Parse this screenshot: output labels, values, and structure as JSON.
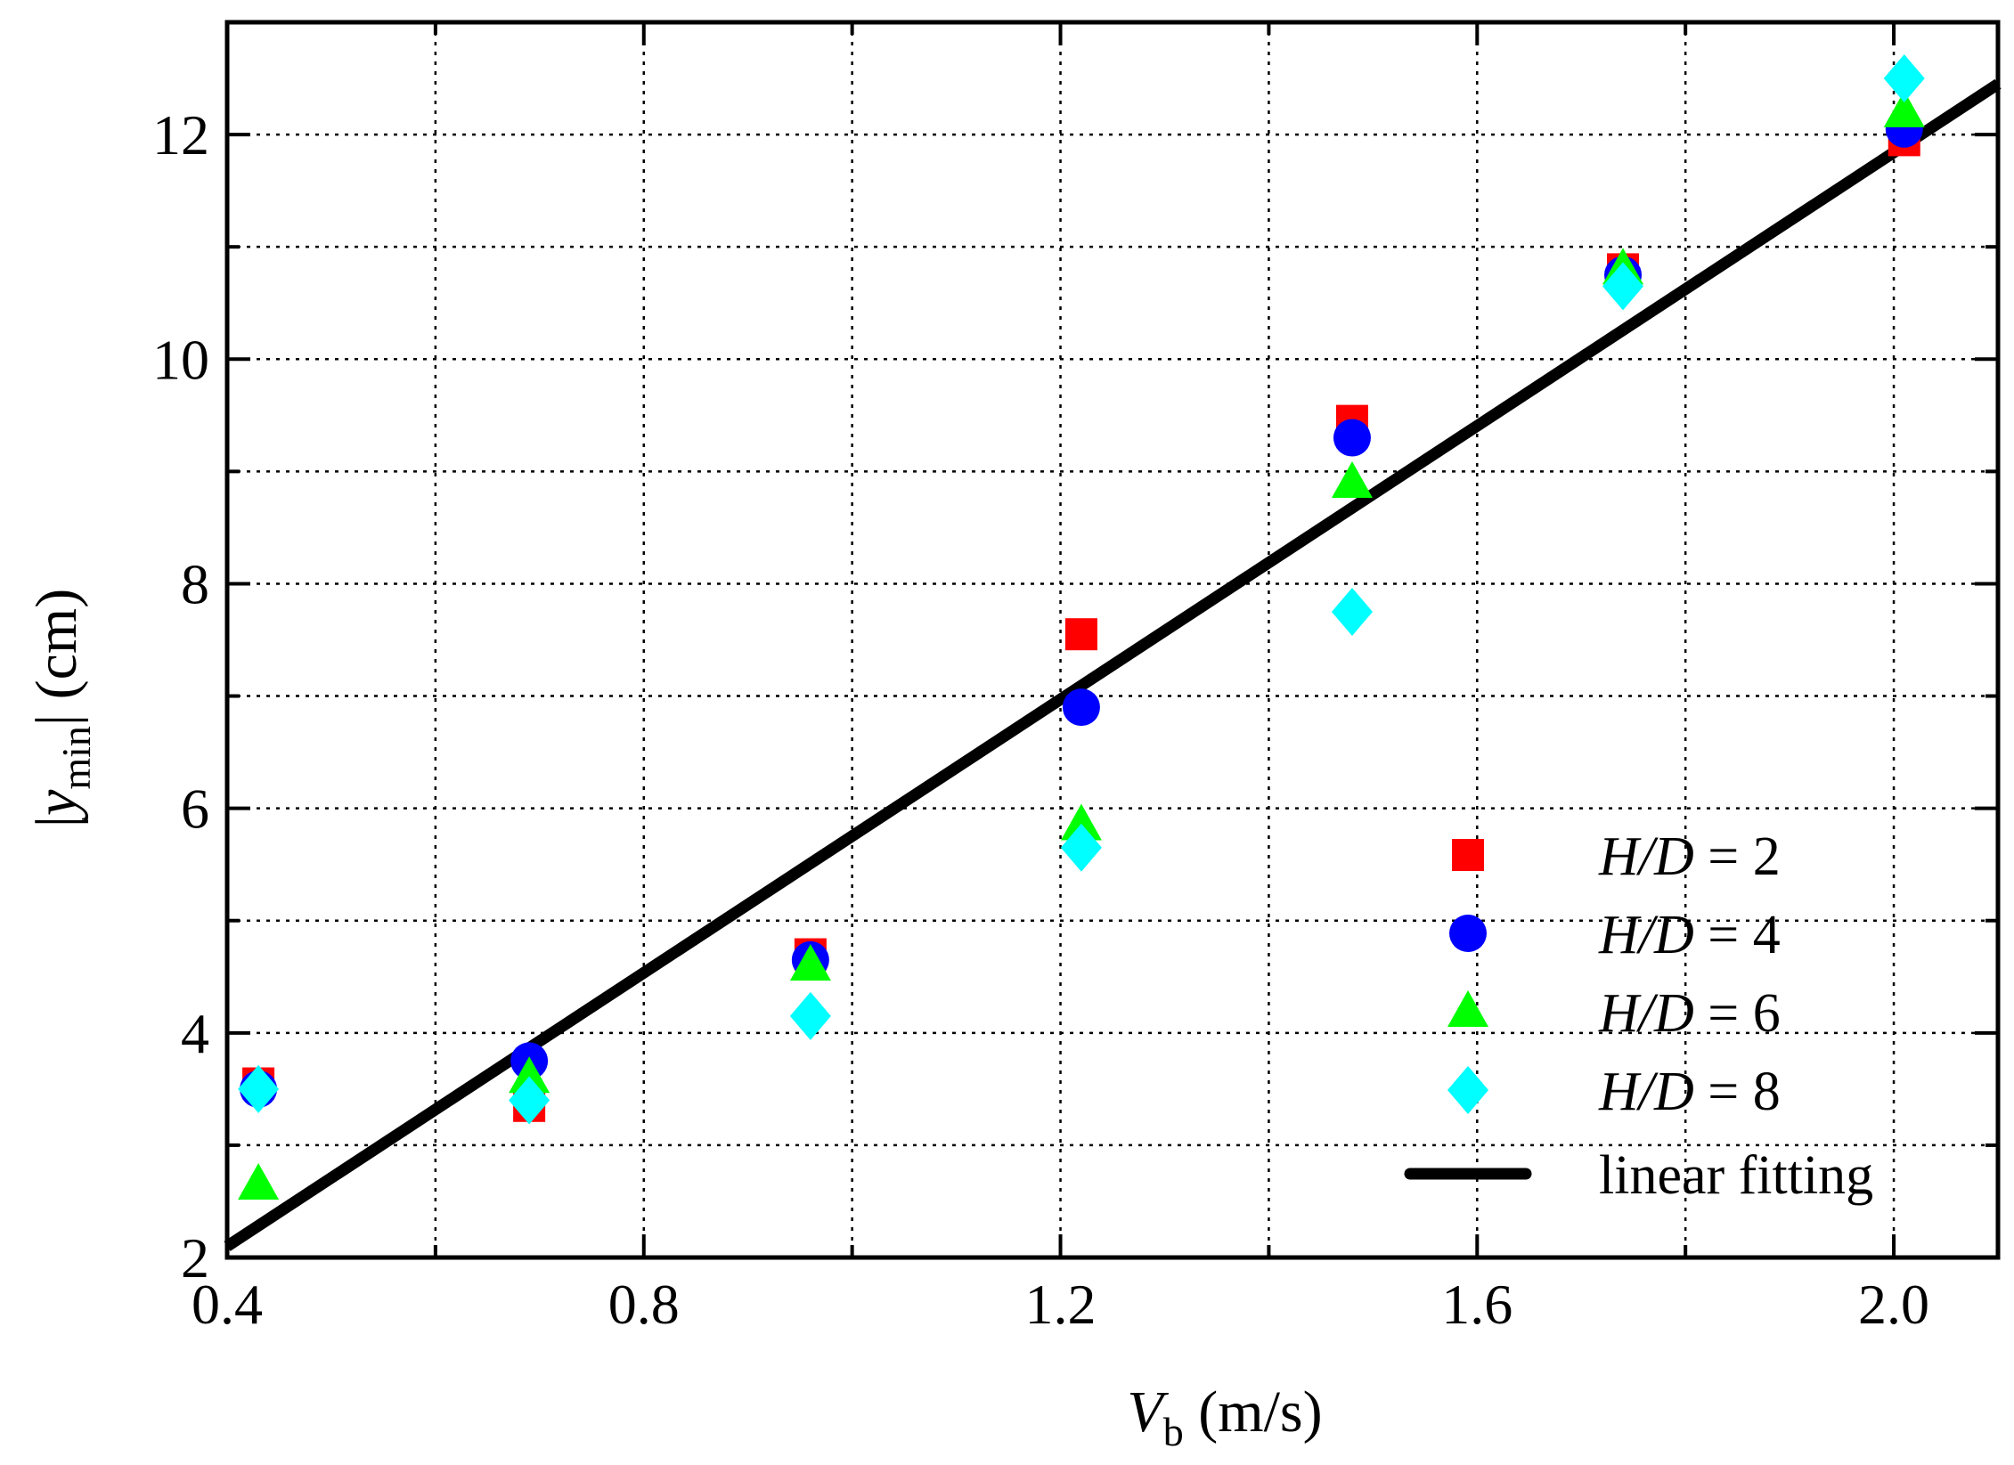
{
  "chart_data": {
    "type": "scatter",
    "title": "",
    "xlabel": {
      "main": "V",
      "sub": "b",
      "unit": " (m/s)"
    },
    "ylabel": {
      "open": "|",
      "main": "y",
      "sub": "min",
      "close": "| (cm)"
    },
    "xlim": [
      0.4,
      2.1
    ],
    "ylim": [
      2,
      13
    ],
    "xticks": [
      0.4,
      0.8,
      1.2,
      1.6,
      2.0
    ],
    "xtick_labels": [
      "0.4",
      "0.8",
      "1.2",
      "1.6",
      "2.0"
    ],
    "xminor": [
      0.6,
      1.0,
      1.4,
      1.8
    ],
    "yticks": [
      2,
      4,
      6,
      8,
      10,
      12
    ],
    "ytick_labels": [
      "2",
      "4",
      "6",
      "8",
      "10",
      "12"
    ],
    "yminor": [
      3,
      5,
      7,
      9,
      11
    ],
    "grid": true,
    "legend_position": "bottom-right",
    "series": [
      {
        "name": "H/D = 2",
        "label_italic": "H/D",
        "label_rest": " = 2",
        "marker": "square",
        "color": "#ff0000",
        "x": [
          0.43,
          0.69,
          0.96,
          1.22,
          1.48,
          1.74,
          2.01
        ],
        "y": [
          3.55,
          3.35,
          4.7,
          7.55,
          9.45,
          10.8,
          11.95
        ]
      },
      {
        "name": "H/D = 4",
        "label_italic": "H/D",
        "label_rest": " = 4",
        "marker": "circle",
        "color": "#0000ff",
        "x": [
          0.43,
          0.69,
          0.96,
          1.22,
          1.48,
          1.74,
          2.01
        ],
        "y": [
          3.5,
          3.75,
          4.65,
          6.9,
          9.3,
          10.75,
          12.05
        ]
      },
      {
        "name": "H/D = 6",
        "label_italic": "H/D",
        "label_rest": " = 6",
        "marker": "triangle",
        "color": "#00ff00",
        "x": [
          0.43,
          0.69,
          0.96,
          1.22,
          1.48,
          1.74,
          2.01
        ],
        "y": [
          2.65,
          3.6,
          4.6,
          5.85,
          8.9,
          10.8,
          12.2
        ]
      },
      {
        "name": "H/D = 8",
        "label_italic": "H/D",
        "label_rest": " = 8",
        "marker": "diamond",
        "color": "#00ffff",
        "x": [
          0.43,
          0.69,
          0.96,
          1.22,
          1.48,
          1.74,
          2.01
        ],
        "y": [
          3.5,
          3.4,
          4.15,
          5.65,
          7.75,
          10.65,
          12.5
        ]
      }
    ],
    "fit": {
      "name": "linear fitting",
      "color": "#000000",
      "x": [
        0.4,
        2.1
      ],
      "y": [
        2.1,
        12.45
      ]
    }
  }
}
